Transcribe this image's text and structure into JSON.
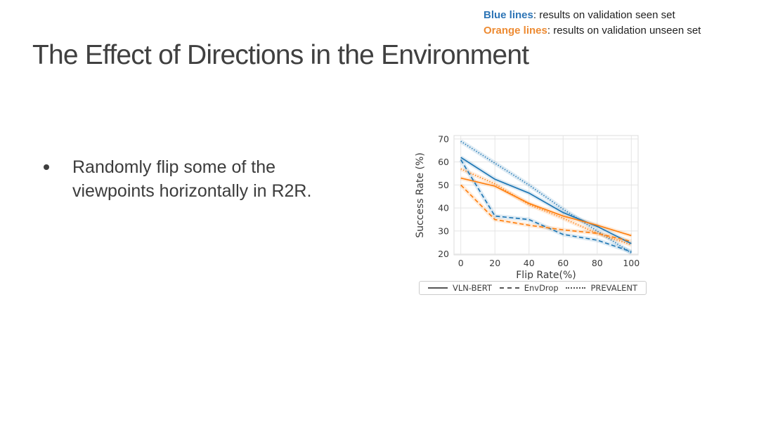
{
  "note": {
    "seen": {
      "label": "Blue lines",
      "text": ": results on validation seen set",
      "color": "#2e75b6"
    },
    "unseen": {
      "label": "Orange lines",
      "text": ": results on validation unseen set",
      "color": "#ed8b33"
    }
  },
  "slide": {
    "title": "The Effect of Directions in the Environment",
    "bullet": "Randomly flip some of the viewpoints horizontally in R2R."
  },
  "chart_data": {
    "type": "line",
    "title": "",
    "xlabel": "Flip Rate(%)",
    "ylabel": "Success Rate (%)",
    "x": [
      0,
      20,
      40,
      60,
      80,
      100
    ],
    "xticks": [
      0,
      20,
      40,
      60,
      80,
      100
    ],
    "yticks": [
      20,
      30,
      40,
      50,
      60,
      70
    ],
    "xlim": [
      -4,
      104
    ],
    "ylim": [
      19.6,
      71.5
    ],
    "grid": true,
    "legend_position": "bottom",
    "colors": {
      "seen": "#1f77b4",
      "unseen": "#ff7f0e"
    },
    "series": [
      {
        "name": "PREVALENT",
        "split": "val_seen",
        "style": "dotted",
        "color": "#1f77b4",
        "values": [
          69,
          59.5,
          50,
          39.5,
          30,
          20.5
        ]
      },
      {
        "name": "PREVALENT",
        "split": "val_unseen",
        "style": "dotted",
        "color": "#ff7f0e",
        "values": [
          57,
          50.5,
          41.5,
          35.5,
          29,
          24
        ]
      },
      {
        "name": "VLN-BERT",
        "split": "val_seen",
        "style": "solid",
        "color": "#1f77b4",
        "values": [
          62,
          52.5,
          46.5,
          38,
          32,
          24.5
        ]
      },
      {
        "name": "VLN-BERT",
        "split": "val_unseen",
        "style": "solid",
        "color": "#ff7f0e",
        "values": [
          53,
          49.5,
          42,
          36.5,
          32.5,
          28
        ]
      },
      {
        "name": "EnvDrop",
        "split": "val_seen",
        "style": "dashed",
        "color": "#1f77b4",
        "values": [
          61,
          36.5,
          35,
          28.5,
          26,
          21
        ]
      },
      {
        "name": "EnvDrop",
        "split": "val_unseen",
        "style": "dashed",
        "color": "#ff7f0e",
        "values": [
          50,
          35,
          32.5,
          30.5,
          29,
          25.5
        ]
      }
    ],
    "legend_items": [
      {
        "label": "VLN-BERT",
        "style": "solid"
      },
      {
        "label": "EnvDrop",
        "style": "dashed"
      },
      {
        "label": "PREVALENT",
        "style": "dotted"
      }
    ]
  }
}
